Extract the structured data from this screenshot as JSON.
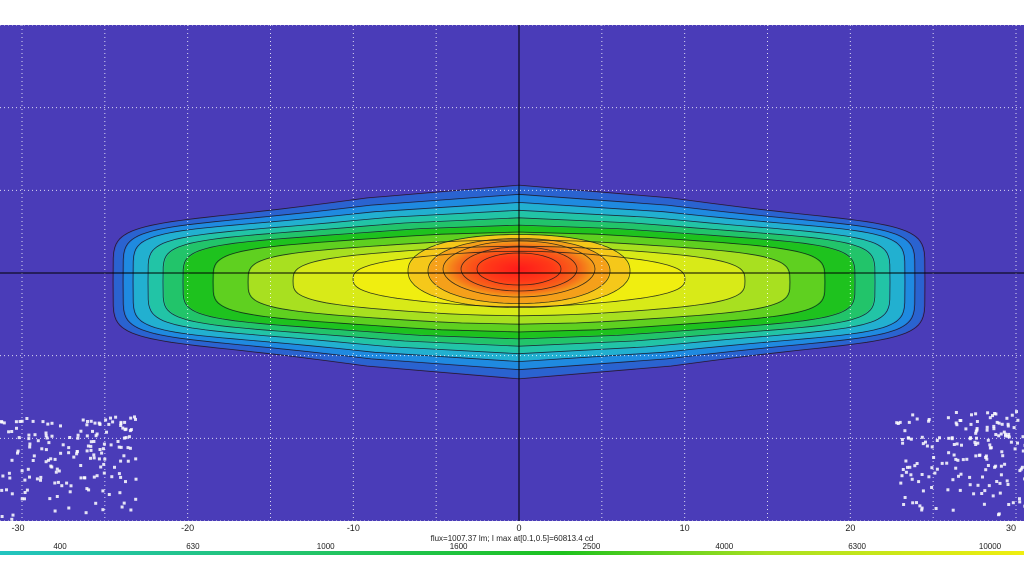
{
  "chart_data": {
    "type": "heatmap",
    "footer_text": "flux=1007.37 lm; I max at[0.1,0.5]=60813.4 cd",
    "x_axis": {
      "range": [
        -30,
        30
      ],
      "ticks": [
        {
          "value": -30,
          "label": "-30"
        },
        {
          "value": -20,
          "label": "-20"
        },
        {
          "value": -10,
          "label": "-10"
        },
        {
          "value": 0,
          "label": "0"
        },
        {
          "value": 10,
          "label": "10"
        },
        {
          "value": 20,
          "label": "20"
        },
        {
          "value": 30,
          "label": "30"
        }
      ],
      "grid_lines": [
        -30,
        -25,
        -20,
        -15,
        -10,
        -5,
        0,
        5,
        10,
        15,
        20,
        25,
        30
      ]
    },
    "y_axis": {
      "range": [
        -15,
        15
      ],
      "grid_lines": [
        -15,
        -10,
        -5,
        0,
        5,
        10,
        15
      ]
    },
    "intensity_peak": {
      "x": 0.1,
      "y": 0.5,
      "value": 60813.4,
      "unit": "cd"
    },
    "contour_levels": [
      400,
      630,
      1000,
      1600,
      2500,
      4000,
      6300,
      10000,
      16000,
      25000,
      40000
    ],
    "color_scale": {
      "labels": [
        "400",
        "630",
        "1000",
        "1600",
        "2500",
        "4000",
        "6300",
        "10000"
      ],
      "colors": [
        "#4a3cb8",
        "#1f8ae0",
        "#22c4c0",
        "#22c46a",
        "#1ec21e",
        "#a8e020",
        "#f0ee10",
        "#f5a01a",
        "#ff1f1f"
      ]
    },
    "grid": true,
    "colors": {
      "background": "#4a3cb8",
      "grid": "#ffffff",
      "axes": "#000000",
      "contour": "#1a1a1a"
    }
  }
}
